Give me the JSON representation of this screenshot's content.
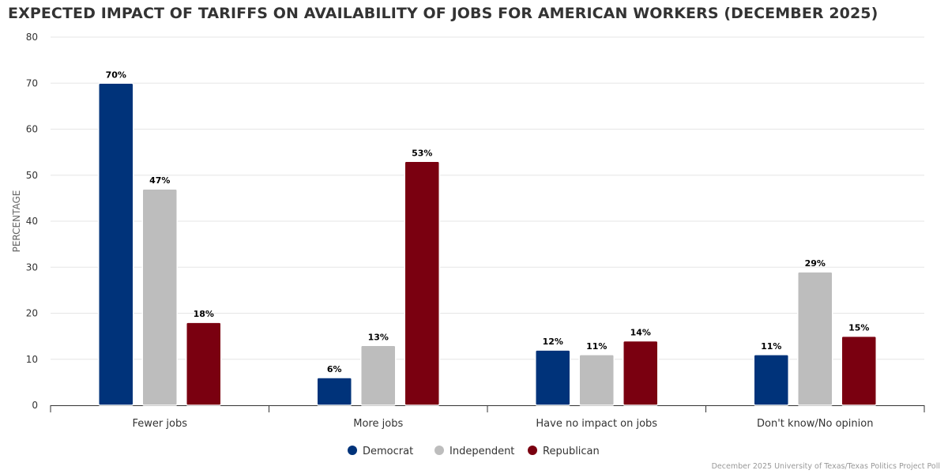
{
  "chart_data": {
    "type": "bar",
    "title": "EXPECTED IMPACT OF TARIFFS ON AVAILABILITY OF JOBS FOR AMERICAN WORKERS (DECEMBER 2025)",
    "xlabel": "",
    "ylabel": "PERCENTAGE",
    "ylim": [
      0,
      80
    ],
    "yticks": [
      0,
      10,
      20,
      30,
      40,
      50,
      60,
      70,
      80
    ],
    "grid": true,
    "legend_position": "bottom-center",
    "categories": [
      "Fewer jobs",
      "More jobs",
      "Have no impact on jobs",
      "Don't know/No opinion"
    ],
    "series": [
      {
        "name": "Democrat",
        "color": "#00337a",
        "values": [
          70,
          6,
          12,
          11
        ],
        "labels": [
          "70%",
          "6%",
          "12%",
          "11%"
        ]
      },
      {
        "name": "Independent",
        "color": "#bdbdbd",
        "values": [
          47,
          13,
          11,
          29
        ],
        "labels": [
          "47%",
          "13%",
          "11%",
          "29%"
        ]
      },
      {
        "name": "Republican",
        "color": "#7a0010",
        "values": [
          18,
          53,
          14,
          15
        ],
        "labels": [
          "18%",
          "53%",
          "14%",
          "15%"
        ]
      }
    ],
    "credit": "December 2025 University of Texas/Texas Politics Project Poll"
  }
}
